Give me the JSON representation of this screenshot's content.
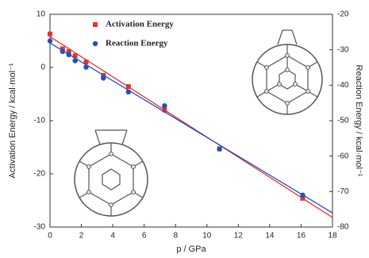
{
  "chart_data": {
    "type": "scatter",
    "xlabel": "p / GPa",
    "ylabel": "Activation Energy / kcal·mol⁻¹",
    "y2label": "Reaction Energy / kcal·mol⁻¹",
    "xlim": [
      0,
      18
    ],
    "xticks": [
      0,
      2,
      4,
      6,
      8,
      10,
      12,
      14,
      16,
      18
    ],
    "ylim": [
      -30,
      10
    ],
    "yticks": [
      -30,
      -20,
      -10,
      0,
      10
    ],
    "y2lim": [
      -80,
      -20
    ],
    "y2ticks": [
      -80,
      -70,
      -60,
      -50,
      -40,
      -30,
      -20
    ],
    "series": [
      {
        "name": "Activation Energy",
        "color": "#e8312a",
        "marker": "square",
        "axis": "y",
        "x": [
          0,
          0.8,
          1.2,
          1.6,
          2.3,
          3.4,
          5.0,
          7.3,
          10.8,
          16.1
        ],
        "values": [
          6.3,
          3.5,
          3.0,
          2.2,
          1.0,
          -1.5,
          -3.6,
          -8.0,
          -15.3,
          -24.6
        ],
        "fit": [
          5.8,
          -28.2
        ]
      },
      {
        "name": "Reaction Energy",
        "color": "#1f4fc4",
        "marker": "circle",
        "axis": "y2",
        "x": [
          0,
          0.8,
          1.2,
          1.6,
          2.3,
          3.4,
          5.0,
          7.3,
          10.8,
          16.1
        ],
        "values": [
          -27.5,
          -30.5,
          -31.4,
          -33.1,
          -34.9,
          -38.0,
          -41.9,
          -45.8,
          -58.0,
          -71.0
        ],
        "fit": [
          -28.1,
          -76.0
        ]
      }
    ]
  }
}
